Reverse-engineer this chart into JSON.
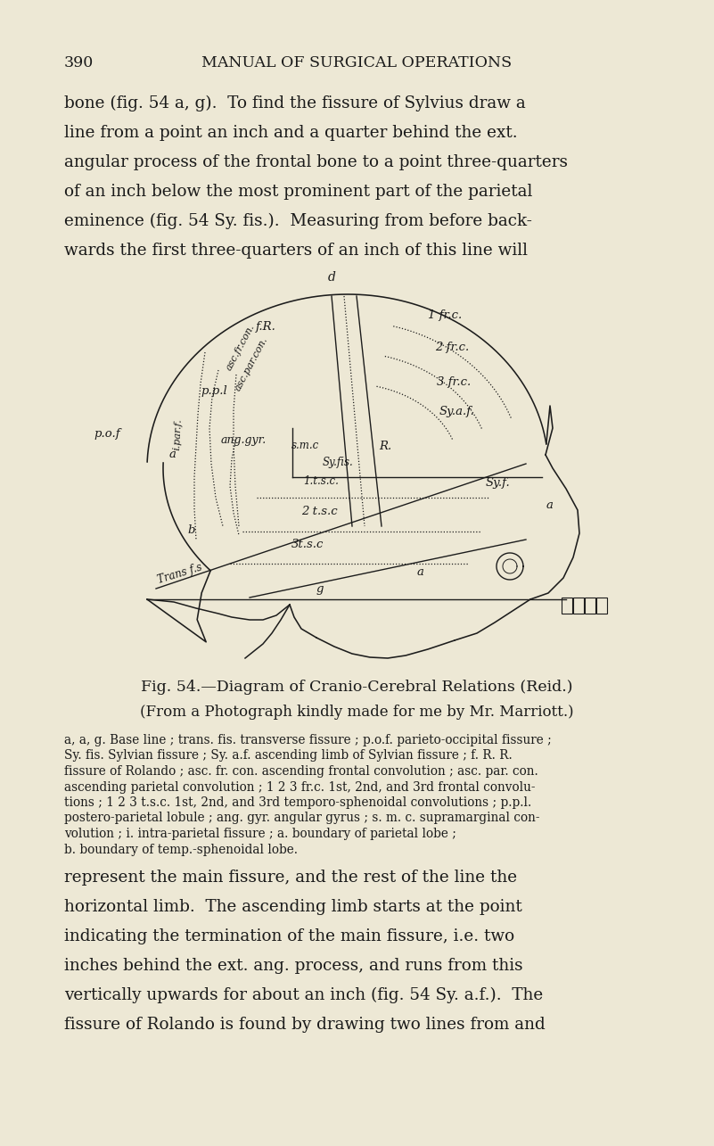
{
  "bg_color": "#ede8d5",
  "text_color": "#1a1a1a",
  "page_number": "390",
  "header": "MANUAL OF SURGICAL OPERATIONS",
  "top_lines": [
    "bone (fig. 54 a, g).  To find the fissure of Sylvius draw a",
    "line from a point an inch and a quarter behind the ext.",
    "angular process of the frontal bone to a point three-quarters",
    "of an inch below the most prominent part of the parietal",
    "eminence (fig. 54 Sy. fis.).  Measuring from before back-",
    "wards the first three-quarters of an inch of this line will"
  ],
  "fig_cap1": "Fig. 54.—Diagram of Cranio-Cerebral Relations (Reid.)",
  "fig_cap2": "(From a Photograph kindly made for me by Mr. Marriott.)",
  "legend_lines": [
    "a, a, g. Base line ; trans. fis. transverse fissure ; p.o.f. parieto-occipital fissure ;",
    "Sy. fis. Sylvian fissure ; Sy. a.f. ascending limb of Sylvian fissure ; f. R. R.",
    "fissure of Rolando ; asc. fr. con. ascending frontal convolution ; asc. par. con.",
    "ascending parietal convolution ; 1 2 3 fr.c. 1st, 2nd, and 3rd frontal convolu-",
    "tions ; 1 2 3 t.s.c. 1st, 2nd, and 3rd temporo-sphenoidal convolutions ; p.p.l.",
    "postero-parietal lobule ; ang. gyr. angular gyrus ; s. m. c. supramarginal con-",
    "volution ; i. intra-parietal fissure ; a. boundary of parietal lobe ;",
    "b. boundary of temp.-sphenoidal lobe."
  ],
  "bottom_lines": [
    "represent the main fissure, and the rest of the line the",
    "horizontal limb.  The ascending limb starts at the point",
    "indicating the termination of the main fissure, i.e. two",
    "inches behind the ext. ang. process, and runs from this",
    "vertically upwards for about an inch (fig. 54 Sy. a.f.).  The",
    "fissure of Rolando is found by drawing two lines from and"
  ]
}
